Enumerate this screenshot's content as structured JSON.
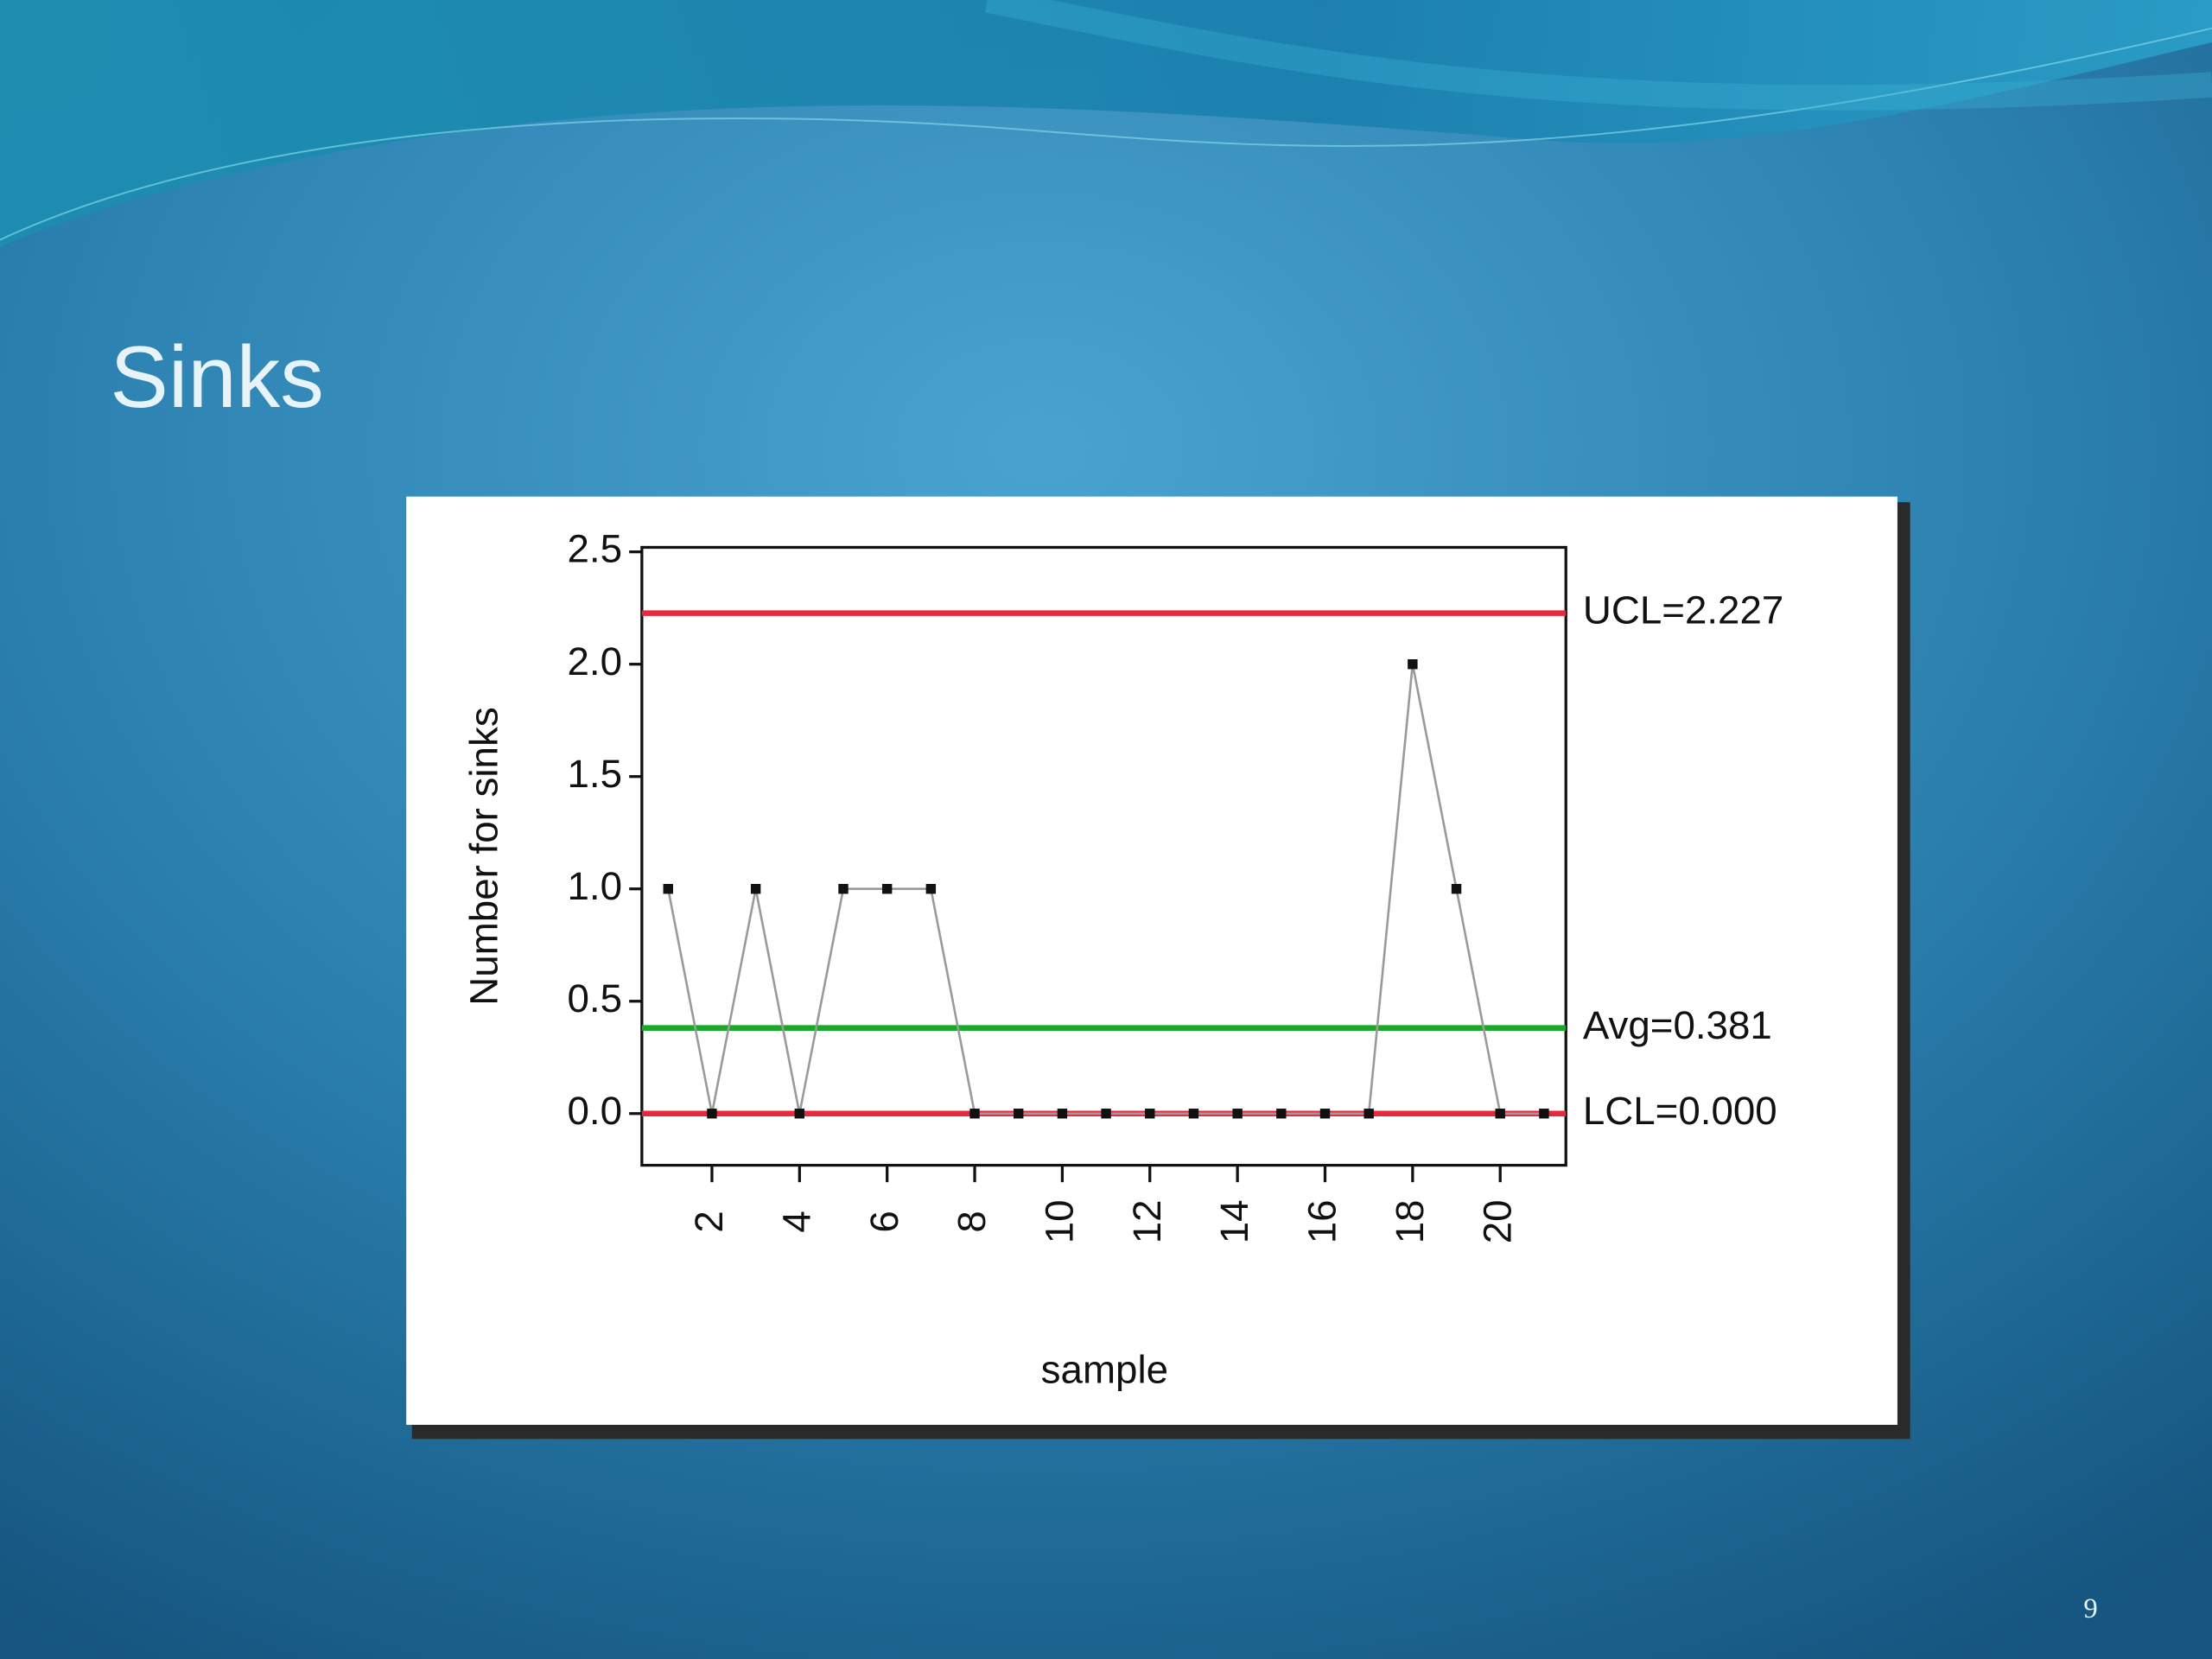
{
  "slide": {
    "title": "Sinks",
    "page_number": "9"
  },
  "chart_data": {
    "type": "line",
    "ylabel": "Number for sinks",
    "xlabel": "sample",
    "x": [
      1,
      2,
      3,
      4,
      5,
      6,
      7,
      8,
      9,
      10,
      11,
      12,
      13,
      14,
      15,
      16,
      17,
      18,
      19,
      20,
      21
    ],
    "values": [
      1,
      0,
      1,
      0,
      1,
      1,
      1,
      0,
      0,
      0,
      0,
      0,
      0,
      0,
      0,
      0,
      0,
      2,
      1,
      0,
      0
    ],
    "color": "#9a9a9a",
    "marker_color": "#111111",
    "xlim": [
      0.4,
      21.5
    ],
    "xticks": [
      2,
      4,
      6,
      8,
      10,
      12,
      14,
      16,
      18,
      20
    ],
    "ylim": [
      -0.23,
      2.52
    ],
    "yticks": [
      {
        "value": 0,
        "label": "0.0"
      },
      0.5,
      {
        "value": 1,
        "label": "1.0"
      },
      1.5,
      {
        "value": 2,
        "label": "2.0"
      },
      2.5
    ],
    "control_lines": [
      {
        "label": "UCL=2.227",
        "value": 2.227,
        "color": "#e8283c"
      },
      {
        "label": "Avg=0.381",
        "value": 0.381,
        "color": "#1aa82a"
      },
      {
        "label": "LCL=0.000",
        "value": 0.0,
        "color": "#e8283c"
      }
    ]
  }
}
